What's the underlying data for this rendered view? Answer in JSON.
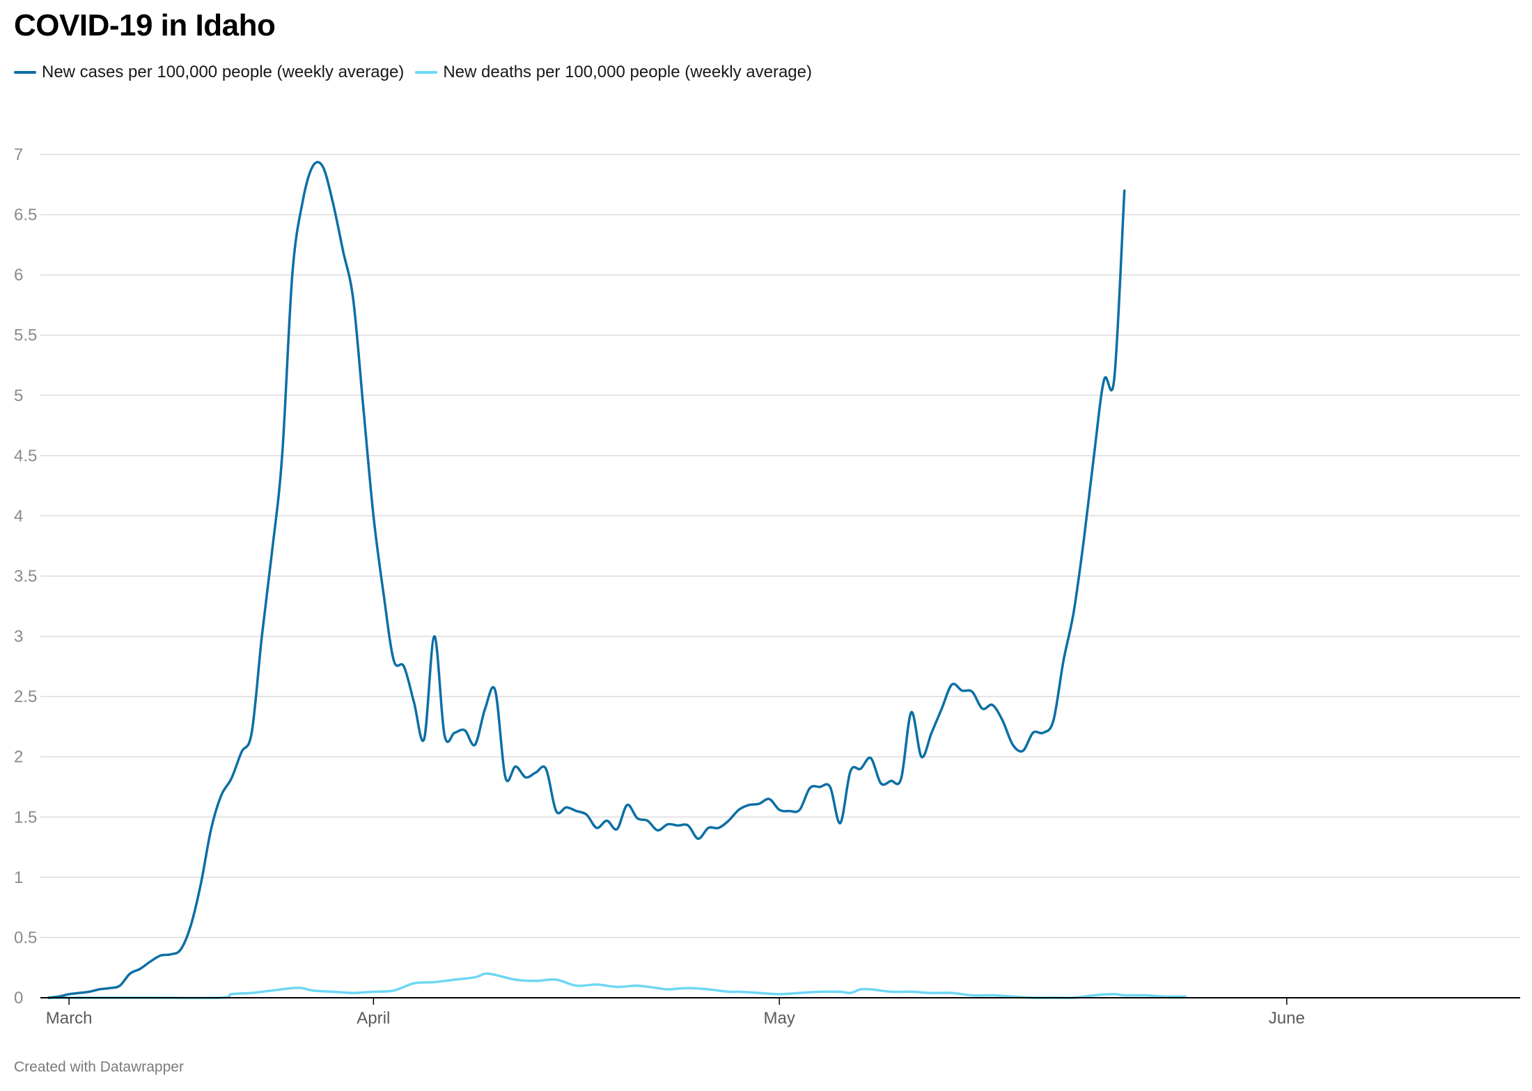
{
  "title": "COVID-19 in Idaho",
  "footer": "Created with Datawrapper",
  "chart_data": {
    "type": "line",
    "title": "COVID-19 in Idaho",
    "xlabel": "",
    "ylabel": "",
    "ylim": [
      0,
      7
    ],
    "yticks": [
      "0",
      "0.5",
      "1",
      "1.5",
      "2",
      "2.5",
      "3",
      "3.5",
      "4",
      "4.5",
      "5",
      "5.5",
      "6",
      "6.5",
      "7"
    ],
    "xticks": [
      {
        "label": "March",
        "day": 2
      },
      {
        "label": "April",
        "day": 32
      },
      {
        "label": "May",
        "day": 72
      },
      {
        "label": "June",
        "day": 122
      }
    ],
    "x_unit": "day of the year (1 = 1 March)",
    "xlim": [
      0,
      145
    ],
    "grid": true,
    "legend_position": "top-left",
    "colors": {
      "cases": "#0b6fa4",
      "deaths": "#6dd7f4",
      "grid": "#dcdcdc",
      "axis": "#000000"
    },
    "series": [
      {
        "name": "New cases per 100,000 people (weekly average)",
        "color": "#0b6fa4",
        "points": [
          [
            0,
            0
          ],
          [
            1,
            0.01
          ],
          [
            2,
            0.03
          ],
          [
            3,
            0.04
          ],
          [
            4,
            0.05
          ],
          [
            5,
            0.07
          ],
          [
            6,
            0.08
          ],
          [
            7,
            0.1
          ],
          [
            8,
            0.2
          ],
          [
            9,
            0.24
          ],
          [
            10,
            0.3
          ],
          [
            11,
            0.35
          ],
          [
            12,
            0.36
          ],
          [
            13,
            0.4
          ],
          [
            14,
            0.6
          ],
          [
            15,
            0.95
          ],
          [
            16,
            1.4
          ],
          [
            17,
            1.68
          ],
          [
            18,
            1.82
          ],
          [
            19,
            2.04
          ],
          [
            20,
            2.2
          ],
          [
            21,
            3.0
          ],
          [
            22,
            3.7
          ],
          [
            23,
            4.5
          ],
          [
            24,
            6.0
          ],
          [
            25,
            6.6
          ],
          [
            26,
            6.9
          ],
          [
            27,
            6.9
          ],
          [
            28,
            6.6
          ],
          [
            29,
            6.2
          ],
          [
            30,
            5.8
          ],
          [
            31,
            4.9
          ],
          [
            32,
            4.0
          ],
          [
            33,
            3.35
          ],
          [
            34,
            2.8
          ],
          [
            35,
            2.75
          ],
          [
            36,
            2.45
          ],
          [
            37,
            2.15
          ],
          [
            38,
            3.0
          ],
          [
            39,
            2.18
          ],
          [
            40,
            2.2
          ],
          [
            41,
            2.22
          ],
          [
            42,
            2.1
          ],
          [
            43,
            2.4
          ],
          [
            44,
            2.55
          ],
          [
            45,
            1.83
          ],
          [
            46,
            1.92
          ],
          [
            47,
            1.83
          ],
          [
            48,
            1.87
          ],
          [
            49,
            1.9
          ],
          [
            50,
            1.55
          ],
          [
            51,
            1.58
          ],
          [
            52,
            1.55
          ],
          [
            53,
            1.52
          ],
          [
            54,
            1.41
          ],
          [
            55,
            1.47
          ],
          [
            56,
            1.4
          ],
          [
            57,
            1.6
          ],
          [
            58,
            1.49
          ],
          [
            59,
            1.47
          ],
          [
            60,
            1.39
          ],
          [
            61,
            1.44
          ],
          [
            62,
            1.43
          ],
          [
            63,
            1.43
          ],
          [
            64,
            1.32
          ],
          [
            65,
            1.41
          ],
          [
            66,
            1.41
          ],
          [
            67,
            1.47
          ],
          [
            68,
            1.56
          ],
          [
            69,
            1.6
          ],
          [
            70,
            1.61
          ],
          [
            71,
            1.65
          ],
          [
            72,
            1.56
          ],
          [
            73,
            1.55
          ],
          [
            74,
            1.56
          ],
          [
            75,
            1.74
          ],
          [
            76,
            1.75
          ],
          [
            77,
            1.75
          ],
          [
            78,
            1.45
          ],
          [
            79,
            1.88
          ],
          [
            80,
            1.9
          ],
          [
            81,
            1.99
          ],
          [
            82,
            1.78
          ],
          [
            83,
            1.8
          ],
          [
            84,
            1.82
          ],
          [
            85,
            2.37
          ],
          [
            86,
            2.0
          ],
          [
            87,
            2.2
          ],
          [
            88,
            2.4
          ],
          [
            89,
            2.6
          ],
          [
            90,
            2.55
          ],
          [
            91,
            2.54
          ],
          [
            92,
            2.4
          ],
          [
            93,
            2.43
          ],
          [
            94,
            2.3
          ],
          [
            95,
            2.1
          ],
          [
            96,
            2.05
          ],
          [
            97,
            2.2
          ],
          [
            98,
            2.2
          ],
          [
            99,
            2.3
          ],
          [
            100,
            2.8
          ],
          [
            101,
            3.2
          ],
          [
            102,
            3.8
          ],
          [
            103,
            4.5
          ],
          [
            104,
            5.13
          ],
          [
            105,
            5.14
          ],
          [
            106,
            6.7
          ]
        ]
      },
      {
        "name": "New deaths per 100,000 people (weekly average)",
        "color": "#6dd7f4",
        "points": [
          [
            0,
            0
          ],
          [
            5,
            0
          ],
          [
            10,
            0
          ],
          [
            17,
            0
          ],
          [
            18,
            0.03
          ],
          [
            20,
            0.04
          ],
          [
            22,
            0.06
          ],
          [
            24,
            0.08
          ],
          [
            25,
            0.08
          ],
          [
            26,
            0.06
          ],
          [
            28,
            0.05
          ],
          [
            30,
            0.04
          ],
          [
            32,
            0.05
          ],
          [
            34,
            0.06
          ],
          [
            36,
            0.12
          ],
          [
            38,
            0.13
          ],
          [
            40,
            0.15
          ],
          [
            42,
            0.17
          ],
          [
            43,
            0.2
          ],
          [
            44,
            0.19
          ],
          [
            46,
            0.15
          ],
          [
            48,
            0.14
          ],
          [
            50,
            0.15
          ],
          [
            52,
            0.1
          ],
          [
            54,
            0.11
          ],
          [
            56,
            0.09
          ],
          [
            58,
            0.1
          ],
          [
            60,
            0.08
          ],
          [
            61,
            0.07
          ],
          [
            63,
            0.08
          ],
          [
            65,
            0.07
          ],
          [
            67,
            0.05
          ],
          [
            68,
            0.05
          ],
          [
            70,
            0.04
          ],
          [
            72,
            0.03
          ],
          [
            74,
            0.04
          ],
          [
            76,
            0.05
          ],
          [
            78,
            0.05
          ],
          [
            79,
            0.04
          ],
          [
            80,
            0.07
          ],
          [
            81,
            0.07
          ],
          [
            83,
            0.05
          ],
          [
            85,
            0.05
          ],
          [
            87,
            0.04
          ],
          [
            89,
            0.04
          ],
          [
            91,
            0.02
          ],
          [
            93,
            0.02
          ],
          [
            95,
            0.01
          ],
          [
            97,
            0
          ],
          [
            99,
            0
          ],
          [
            101,
            0
          ],
          [
            103,
            0.02
          ],
          [
            105,
            0.03
          ],
          [
            106,
            0.02
          ],
          [
            108,
            0.02
          ],
          [
            110,
            0.01
          ],
          [
            112,
            0.01
          ]
        ]
      }
    ]
  }
}
